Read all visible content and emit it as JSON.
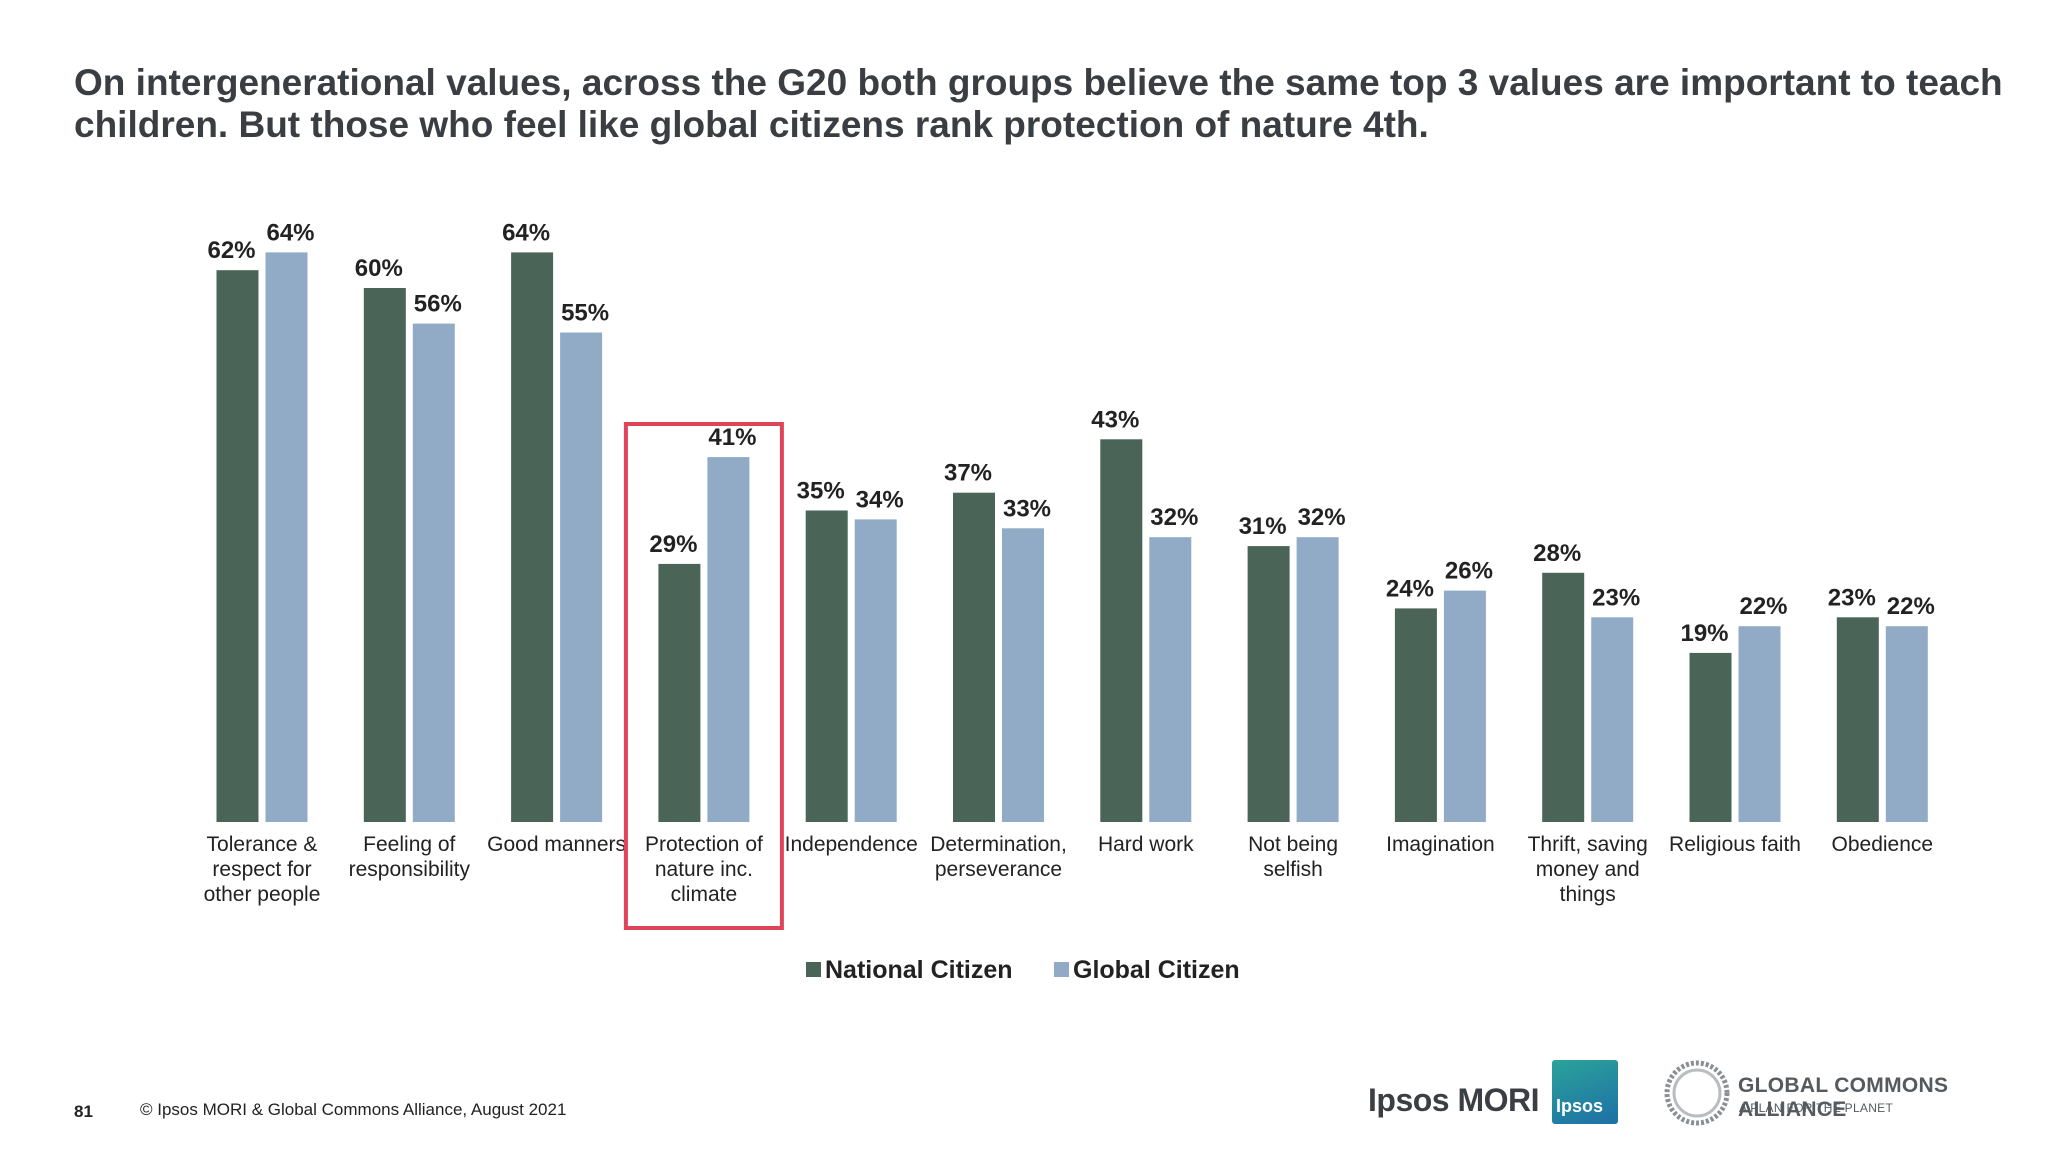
{
  "title": "On intergenerational values, across the G20 both groups believe the same top 3 values are important to teach children. But those who feel like global citizens rank protection of nature 4th.",
  "colors": {
    "national": "#4a6558",
    "global": "#91abc6",
    "highlight": "#e0445a"
  },
  "highlight_category": "Protection of nature inc. climate",
  "chart_data": {
    "type": "bar",
    "categories": [
      [
        "Tolerance &",
        "respect for",
        "other people"
      ],
      [
        "Feeling of",
        "responsibility"
      ],
      [
        "Good manners"
      ],
      [
        "Protection of",
        "nature inc.",
        "climate"
      ],
      [
        "Independence"
      ],
      [
        "Determination,",
        "perseverance"
      ],
      [
        "Hard work"
      ],
      [
        "Not being",
        "selfish"
      ],
      [
        "Imagination"
      ],
      [
        "Thrift, saving",
        "money and",
        "things"
      ],
      [
        "Religious faith"
      ],
      [
        "Obedience"
      ]
    ],
    "series": [
      {
        "name": "National Citizen",
        "values": [
          62,
          60,
          64,
          29,
          35,
          37,
          43,
          31,
          24,
          28,
          19,
          23
        ]
      },
      {
        "name": "Global Citizen",
        "values": [
          64,
          56,
          55,
          41,
          34,
          33,
          32,
          32,
          26,
          23,
          22,
          22
        ]
      }
    ],
    "value_suffix": "%",
    "ylim": [
      0,
      100
    ],
    "grid": false,
    "legend_position": "bottom"
  },
  "footer": {
    "page_number": "81",
    "copyright": "© Ipsos MORI & Global Commons Alliance, August 2021"
  },
  "logos": {
    "ipsos_mori": "Ipsos MORI",
    "ipsos_badge": "Ipsos",
    "gca_name": "GLOBAL COMMONS ALLIANCE",
    "gca_tagline": "A PLAN FOR THE PLANET"
  }
}
